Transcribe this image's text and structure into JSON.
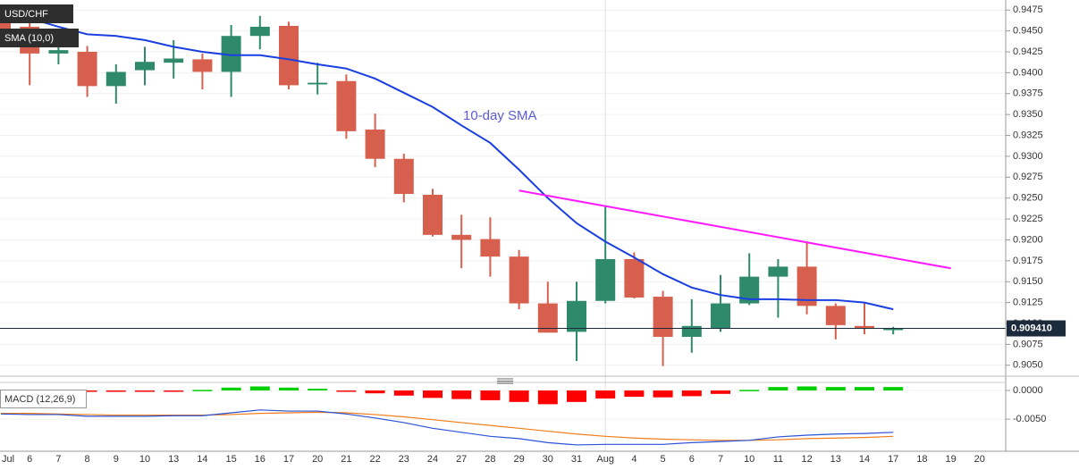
{
  "chart_data": [
    {
      "type": "candlestick",
      "title": "USD/CHF",
      "categories": [
        "Jul",
        "6",
        "7",
        "8",
        "9",
        "10",
        "13",
        "14",
        "15",
        "16",
        "17",
        "20",
        "21",
        "22",
        "23",
        "24",
        "27",
        "28",
        "29",
        "30",
        "31",
        "Aug",
        "4",
        "5",
        "6",
        "7",
        "10",
        "11",
        "12",
        "13",
        "14",
        "17",
        "18",
        "19",
        "20"
      ],
      "open": [
        0.946,
        0.9455,
        0.9423,
        0.9425,
        0.9384,
        0.9403,
        0.9412,
        0.9416,
        0.9401,
        0.9444,
        0.9456,
        0.9386,
        0.939,
        0.9332,
        0.9297,
        0.9254,
        0.9206,
        0.9201,
        0.918,
        0.9124,
        0.909,
        0.9127,
        0.9177,
        0.9132,
        0.9084,
        0.9094,
        0.9124,
        0.9156,
        0.9168,
        0.9121,
        0.9097,
        0.9092,
        null,
        null,
        null
      ],
      "high": [
        0.9475,
        0.9465,
        0.945,
        0.9432,
        0.941,
        0.9431,
        0.9439,
        0.9423,
        0.9457,
        0.9468,
        0.9461,
        0.9412,
        0.9398,
        0.9351,
        0.9303,
        0.9261,
        0.923,
        0.9227,
        0.9188,
        0.915,
        0.915,
        0.9241,
        0.9185,
        0.9139,
        0.9129,
        0.9158,
        0.9184,
        0.9177,
        0.9198,
        0.9124,
        0.9124,
        0.9096,
        null,
        null,
        null
      ],
      "low": [
        0.944,
        0.9385,
        0.941,
        0.9371,
        0.9363,
        0.9385,
        0.9393,
        0.938,
        0.9371,
        0.9428,
        0.938,
        0.9374,
        0.9321,
        0.9287,
        0.9245,
        0.9204,
        0.9166,
        0.9156,
        0.9117,
        0.909,
        0.9055,
        0.9124,
        0.913,
        0.9049,
        0.9065,
        0.909,
        0.9122,
        0.9107,
        0.9111,
        0.9081,
        0.9087,
        0.9087,
        null,
        null,
        null
      ],
      "close": [
        0.9447,
        0.9423,
        0.9427,
        0.9384,
        0.9401,
        0.9413,
        0.9417,
        0.9401,
        0.9444,
        0.9455,
        0.9385,
        0.9388,
        0.933,
        0.9297,
        0.9255,
        0.9206,
        0.92,
        0.918,
        0.9124,
        0.9089,
        0.9127,
        0.9177,
        0.9131,
        0.9084,
        0.9097,
        0.9124,
        0.9156,
        0.9168,
        0.9121,
        0.9098,
        0.9094,
        0.9094,
        null,
        null,
        null
      ],
      "up_color": "#2f8a6c",
      "down_color": "#d6604d",
      "lines": [
        {
          "name": "SMA (10,0)",
          "color": "#1a3fe0",
          "values": [
            0.9476,
            0.9465,
            0.9455,
            0.9446,
            0.9444,
            0.9439,
            0.9431,
            0.9425,
            0.9421,
            0.9421,
            0.9416,
            0.941,
            0.9405,
            0.9393,
            0.9376,
            0.9359,
            0.9337,
            0.9316,
            0.9284,
            0.925,
            0.922,
            0.9198,
            0.9179,
            0.9159,
            0.9143,
            0.9134,
            0.9129,
            0.9129,
            0.9128,
            0.9128,
            0.9125,
            0.9117,
            null,
            null,
            null
          ]
        }
      ],
      "trend_line": {
        "color": "#ff1aff",
        "points": [
          {
            "x": "29",
            "y": 0.9259
          },
          {
            "x": "19",
            "y": 0.9166
          }
        ]
      },
      "annotation": {
        "text": "10-day SMA",
        "color": "#5b5bd6"
      },
      "last_price": {
        "value": 0.90941,
        "label": "0.909410"
      },
      "ylim": [
        0.9038,
        0.9487
      ],
      "yticks": [
        {
          "value": 0.905,
          "label": "0.9050"
        },
        {
          "value": 0.9075,
          "label": "0.9075"
        },
        {
          "value": 0.91,
          "label": "0.9100"
        },
        {
          "value": 0.9125,
          "label": "0.9125"
        },
        {
          "value": 0.915,
          "label": "0.9150"
        },
        {
          "value": 0.9175,
          "label": "0.9175"
        },
        {
          "value": 0.92,
          "label": "0.9200"
        },
        {
          "value": 0.9225,
          "label": "0.9225"
        },
        {
          "value": 0.925,
          "label": "0.9250"
        },
        {
          "value": 0.9275,
          "label": "0.9275"
        },
        {
          "value": 0.93,
          "label": "0.9300"
        },
        {
          "value": 0.9325,
          "label": "0.9325"
        },
        {
          "value": 0.935,
          "label": "0.9350"
        },
        {
          "value": 0.9375,
          "label": "0.9375"
        },
        {
          "value": 0.94,
          "label": "0.9400"
        },
        {
          "value": 0.9425,
          "label": "0.9425"
        },
        {
          "value": 0.945,
          "label": "0.9450"
        },
        {
          "value": 0.9475,
          "label": "0.9475"
        }
      ],
      "grid": true
    },
    {
      "type": "macd",
      "title": "MACD (12,26,9)",
      "histogram": {
        "pos_color": "#00d000",
        "neg_color": "#ff0000",
        "values": [
          -0.0002,
          -0.0002,
          -0.0002,
          -0.0002,
          -0.0002,
          -0.0001,
          -0.0001,
          0.0001,
          0.0005,
          0.0007,
          0.0005,
          0.0003,
          -0.0001,
          -0.0005,
          -0.0009,
          -0.0013,
          -0.0015,
          -0.0017,
          -0.002,
          -0.0024,
          -0.002,
          -0.0014,
          -0.0011,
          -0.0012,
          -0.001,
          -0.0006,
          0.0001,
          0.0006,
          0.0007,
          0.0006,
          0.0006,
          0.0006,
          null,
          null,
          null
        ]
      },
      "macd_line": {
        "color": "#2a52d6",
        "values": [
          -0.0041,
          -0.0042,
          -0.0042,
          -0.0045,
          -0.0045,
          -0.0045,
          -0.0044,
          -0.0044,
          -0.0039,
          -0.0034,
          -0.0036,
          -0.0036,
          -0.0041,
          -0.0048,
          -0.0056,
          -0.0066,
          -0.0073,
          -0.008,
          -0.0084,
          -0.0091,
          -0.0095,
          -0.0094,
          -0.0094,
          -0.0094,
          -0.0091,
          -0.0089,
          -0.0087,
          -0.0081,
          -0.0078,
          -0.0076,
          -0.0075,
          -0.0073,
          null,
          null,
          null
        ]
      },
      "signal_line": {
        "color": "#f07d1a",
        "values": [
          -0.004,
          -0.004,
          -0.0041,
          -0.0042,
          -0.0043,
          -0.0043,
          -0.0043,
          -0.0043,
          -0.0042,
          -0.004,
          -0.0039,
          -0.0038,
          -0.0039,
          -0.0042,
          -0.0046,
          -0.0051,
          -0.0056,
          -0.0061,
          -0.0066,
          -0.0071,
          -0.0076,
          -0.008,
          -0.0083,
          -0.0085,
          -0.0086,
          -0.0087,
          -0.0087,
          -0.0086,
          -0.0084,
          -0.0083,
          -0.0082,
          -0.008,
          null,
          null,
          null
        ]
      },
      "ylim": [
        -0.0106,
        0.0014
      ],
      "yticks": [
        {
          "value": -0.005,
          "label": "-0.0050"
        },
        {
          "value": 0,
          "label": "0.0000"
        }
      ],
      "grid": true
    }
  ]
}
